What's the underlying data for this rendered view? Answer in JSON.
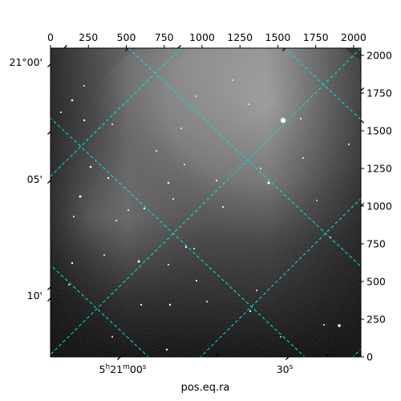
{
  "chart_data": {
    "type": "heatmap",
    "title": "",
    "xlabel": "pos.eq.ra",
    "ylabel": "",
    "pixel_axes": {
      "x_range": [
        0,
        2048
      ],
      "y_range": [
        0,
        2048
      ],
      "top_ticks": [
        "0",
        "250",
        "500",
        "750",
        "1000",
        "1250",
        "1500",
        "1750",
        "2000"
      ],
      "top_tick_values": [
        0,
        250,
        500,
        750,
        1000,
        1250,
        1500,
        1750,
        2000
      ],
      "right_ticks": [
        "0",
        "250",
        "500",
        "750",
        "1000",
        "1250",
        "1500",
        "1750",
        "2000"
      ],
      "right_tick_values": [
        0,
        250,
        500,
        750,
        1000,
        1250,
        1500,
        1750,
        2000
      ]
    },
    "world_axes": {
      "ra_tick_labels": [
        "5h21m00s",
        "30s"
      ],
      "dec_tick_labels": [
        "21°00'",
        "05'",
        "10'"
      ]
    },
    "grid": true,
    "grid_color": "#00e5e5",
    "colormap": "gray"
  }
}
